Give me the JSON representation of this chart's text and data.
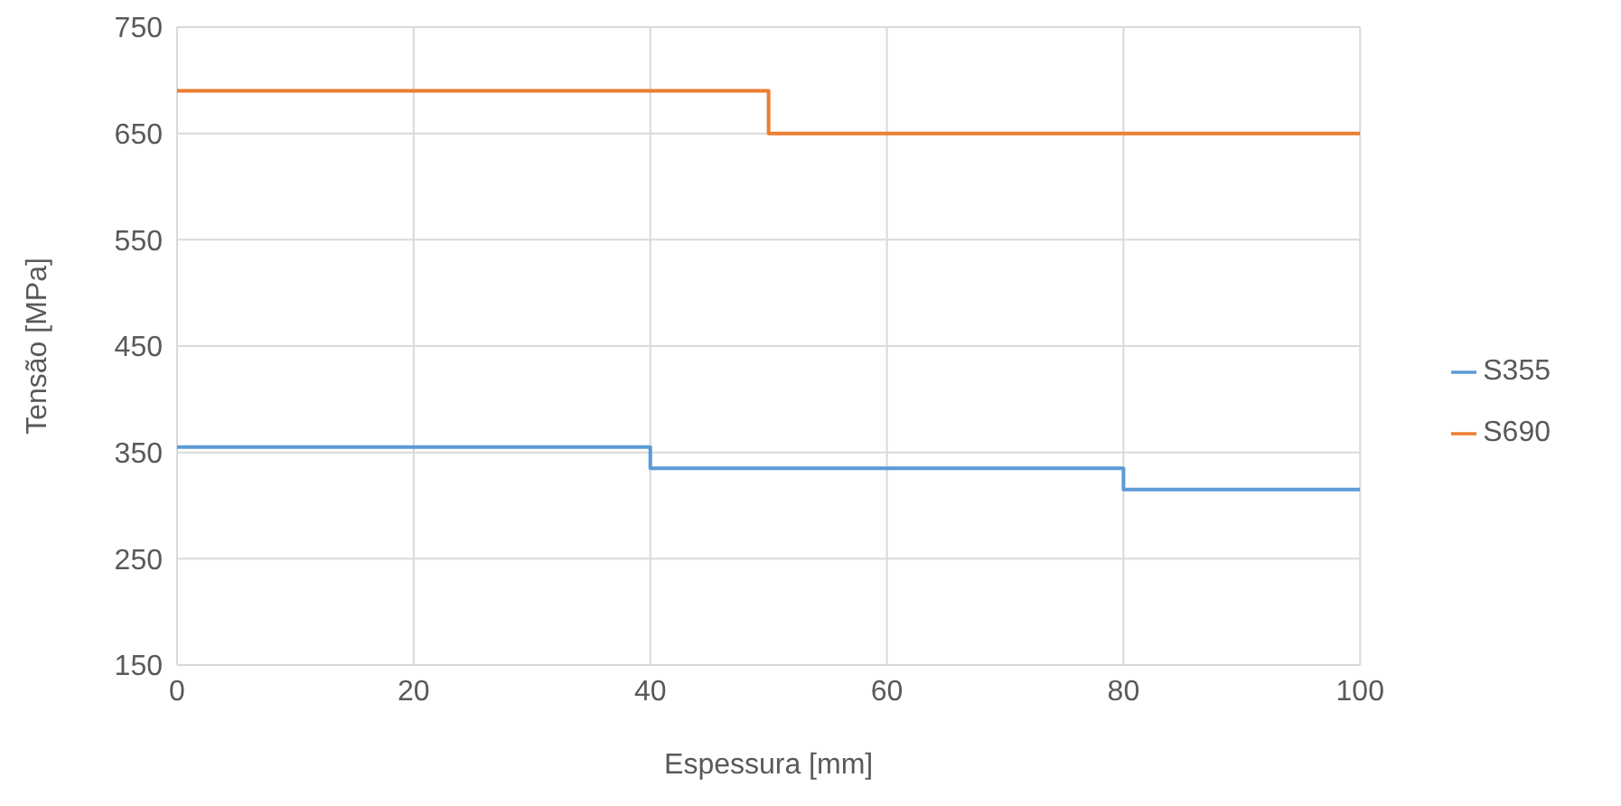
{
  "chart_data": {
    "type": "step",
    "xlabel": "Espessura [mm]",
    "ylabel": "Tensão [MPa]",
    "xlim": [
      0,
      100
    ],
    "xticks": [
      0,
      20,
      40,
      60,
      80,
      100
    ],
    "ylim": [
      150,
      750
    ],
    "yticks": [
      150,
      250,
      350,
      450,
      550,
      650,
      750
    ],
    "grid": true,
    "legend": "right",
    "marker": "none",
    "line_style": "solid",
    "series": [
      {
        "name": "S355",
        "color": "#5b9bd5",
        "x": [
          0,
          40,
          80,
          100
        ],
        "values": [
          355,
          335,
          315,
          315
        ]
      },
      {
        "name": "S690",
        "color": "#ed7d31",
        "x": [
          0,
          50,
          100
        ],
        "values": [
          690,
          650,
          650
        ]
      }
    ]
  }
}
